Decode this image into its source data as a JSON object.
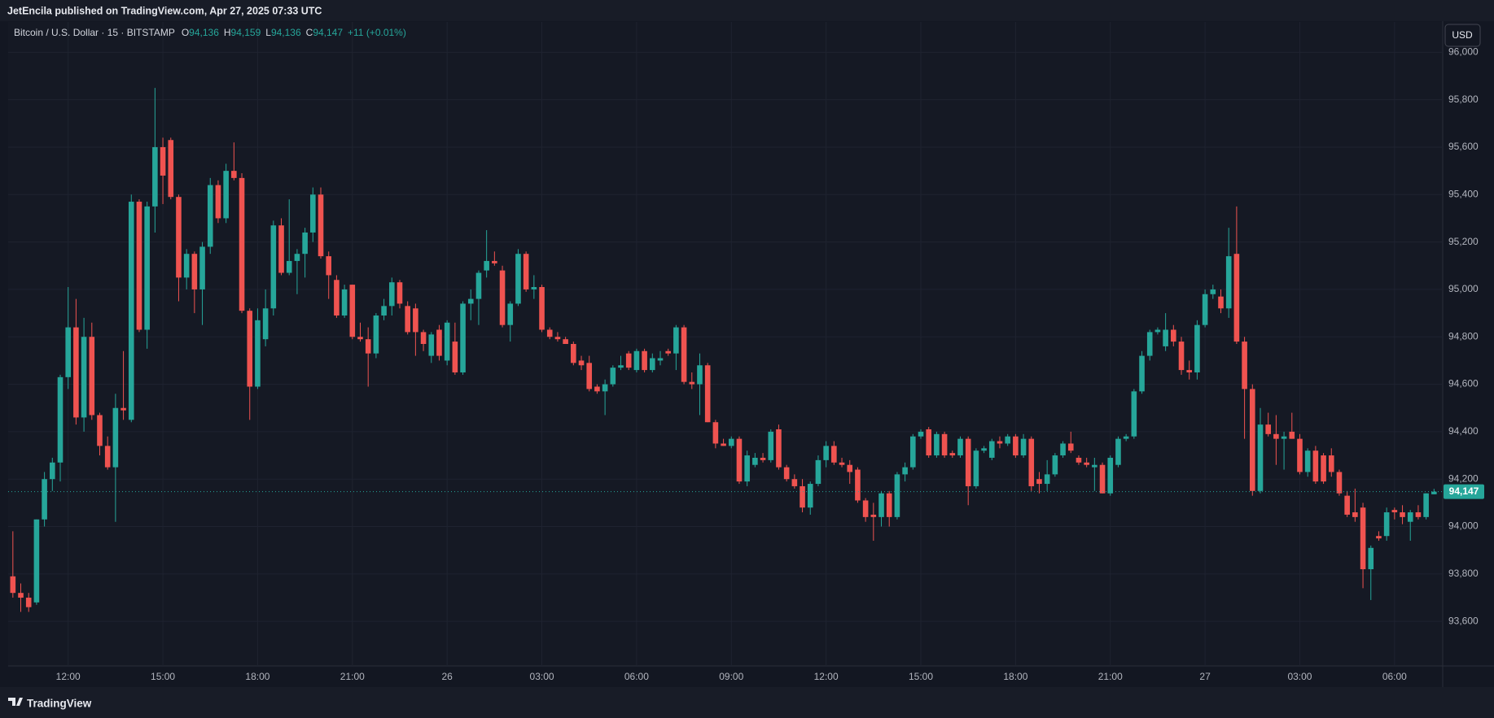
{
  "header": {
    "publisher_line": "JetEncila published on TradingView.com, Apr 27, 2025 07:33 UTC"
  },
  "footer": {
    "brand": "TradingView"
  },
  "chart_data": {
    "type": "candlestick",
    "symbol": "Bitcoin / U.S. Dollar · 15 · BITSTAMP",
    "ohlc_legend": [
      {
        "label": "O",
        "value": "94,136"
      },
      {
        "label": "H",
        "value": "94,159"
      },
      {
        "label": "L",
        "value": "94,136"
      },
      {
        "label": "C",
        "value": "94,147"
      }
    ],
    "change": "+11 (+0.01%)",
    "currency": "USD",
    "up_color": "#26a69a",
    "down_color": "#ef5350",
    "grid": true,
    "last_price": {
      "value": 94147,
      "label": "94,147"
    },
    "ylim": [
      93412,
      96128
    ],
    "yticks": [
      {
        "value": 93600,
        "label": "93,600"
      },
      {
        "value": 93800,
        "label": "93,800"
      },
      {
        "value": 94000,
        "label": "94,000"
      },
      {
        "value": 94200,
        "label": "94,200"
      },
      {
        "value": 94400,
        "label": "94,400"
      },
      {
        "value": 94600,
        "label": "94,600"
      },
      {
        "value": 94800,
        "label": "94,800"
      },
      {
        "value": 95000,
        "label": "95,000"
      },
      {
        "value": 95200,
        "label": "95,200"
      },
      {
        "value": 95400,
        "label": "95,400"
      },
      {
        "value": 95600,
        "label": "95,600"
      },
      {
        "value": 95800,
        "label": "95,800"
      },
      {
        "value": 96000,
        "label": "96,000"
      }
    ],
    "xlim": [
      -0.6,
      181.1
    ],
    "xticks": [
      {
        "value": 7,
        "label": "12:00"
      },
      {
        "value": 19,
        "label": "15:00"
      },
      {
        "value": 31,
        "label": "18:00"
      },
      {
        "value": 43,
        "label": "21:00"
      },
      {
        "value": 55,
        "label": "26"
      },
      {
        "value": 67,
        "label": "03:00"
      },
      {
        "value": 79,
        "label": "06:00"
      },
      {
        "value": 91,
        "label": "09:00"
      },
      {
        "value": 103,
        "label": "12:00"
      },
      {
        "value": 115,
        "label": "15:00"
      },
      {
        "value": 127,
        "label": "18:00"
      },
      {
        "value": 139,
        "label": "21:00"
      },
      {
        "value": 151,
        "label": "27"
      },
      {
        "value": 163,
        "label": "03:00"
      },
      {
        "value": 175,
        "label": "06:00"
      }
    ],
    "candles": [
      [
        93790,
        93980,
        93700,
        93720
      ],
      [
        93720,
        93760,
        93640,
        93700
      ],
      [
        93700,
        93720,
        93640,
        93660
      ],
      [
        93680,
        94030,
        93670,
        94030
      ],
      [
        94030,
        94230,
        94000,
        94200
      ],
      [
        94200,
        94290,
        94150,
        94270
      ],
      [
        94270,
        94640,
        94190,
        94630
      ],
      [
        94630,
        95010,
        94580,
        94840
      ],
      [
        94840,
        94960,
        94430,
        94460
      ],
      [
        94460,
        94880,
        94400,
        94800
      ],
      [
        94800,
        94860,
        94450,
        94470
      ],
      [
        94470,
        94480,
        94300,
        94340
      ],
      [
        94340,
        94380,
        94240,
        94250
      ],
      [
        94250,
        94560,
        94020,
        94500
      ],
      [
        94500,
        94740,
        94450,
        94490
      ],
      [
        94450,
        95400,
        94440,
        95370
      ],
      [
        95370,
        95380,
        94820,
        94830
      ],
      [
        94830,
        95370,
        94750,
        95350
      ],
      [
        95350,
        95850,
        95240,
        95600
      ],
      [
        95600,
        95640,
        95360,
        95480
      ],
      [
        95630,
        95640,
        95380,
        95390
      ],
      [
        95390,
        95400,
        94950,
        95050
      ],
      [
        95050,
        95170,
        95000,
        95150
      ],
      [
        95150,
        95160,
        94900,
        95000
      ],
      [
        95000,
        95200,
        94850,
        95180
      ],
      [
        95180,
        95470,
        95150,
        95440
      ],
      [
        95440,
        95460,
        95280,
        95300
      ],
      [
        95300,
        95530,
        95280,
        95500
      ],
      [
        95500,
        95620,
        95460,
        95470
      ],
      [
        95470,
        95490,
        94900,
        94910
      ],
      [
        94910,
        94920,
        94450,
        94590
      ],
      [
        94590,
        94920,
        94580,
        94870
      ],
      [
        94790,
        95000,
        94760,
        94920
      ],
      [
        94920,
        95290,
        94890,
        95270
      ],
      [
        95270,
        95300,
        95060,
        95070
      ],
      [
        95070,
        95380,
        95060,
        95120
      ],
      [
        95120,
        95170,
        94980,
        95150
      ],
      [
        95150,
        95260,
        95050,
        95240
      ],
      [
        95240,
        95430,
        95200,
        95400
      ],
      [
        95400,
        95430,
        95130,
        95140
      ],
      [
        95140,
        95160,
        94960,
        95060
      ],
      [
        95040,
        95060,
        94880,
        94890
      ],
      [
        94890,
        95020,
        94880,
        95000
      ],
      [
        95020,
        95020,
        94790,
        94800
      ],
      [
        94800,
        94860,
        94780,
        94790
      ],
      [
        94790,
        94840,
        94590,
        94730
      ],
      [
        94730,
        94900,
        94710,
        94890
      ],
      [
        94890,
        94960,
        94870,
        94930
      ],
      [
        94930,
        95050,
        94890,
        95030
      ],
      [
        95030,
        95040,
        94920,
        94940
      ],
      [
        94930,
        94950,
        94810,
        94820
      ],
      [
        94920,
        94940,
        94720,
        94820
      ],
      [
        94820,
        94830,
        94740,
        94770
      ],
      [
        94720,
        94820,
        94690,
        94810
      ],
      [
        94830,
        94850,
        94700,
        94720
      ],
      [
        94700,
        94870,
        94680,
        94860
      ],
      [
        94780,
        94860,
        94640,
        94650
      ],
      [
        94650,
        94950,
        94640,
        94940
      ],
      [
        94940,
        95000,
        94870,
        94960
      ],
      [
        94960,
        95080,
        94850,
        95070
      ],
      [
        95080,
        95250,
        95050,
        95120
      ],
      [
        95120,
        95160,
        95100,
        95110
      ],
      [
        95080,
        95100,
        94840,
        94850
      ],
      [
        94850,
        94950,
        94780,
        94940
      ],
      [
        94940,
        95170,
        94930,
        95150
      ],
      [
        95150,
        95160,
        94990,
        95000
      ],
      [
        95000,
        95060,
        94960,
        95010
      ],
      [
        95010,
        95020,
        94820,
        94830
      ],
      [
        94830,
        94840,
        94790,
        94800
      ],
      [
        94800,
        94820,
        94780,
        94790
      ],
      [
        94790,
        94800,
        94770,
        94770
      ],
      [
        94770,
        94780,
        94680,
        94690
      ],
      [
        94700,
        94720,
        94660,
        94680
      ],
      [
        94690,
        94720,
        94570,
        94580
      ],
      [
        94590,
        94600,
        94560,
        94570
      ],
      [
        94570,
        94620,
        94470,
        94600
      ],
      [
        94600,
        94680,
        94590,
        94670
      ],
      [
        94670,
        94720,
        94660,
        94680
      ],
      [
        94730,
        94740,
        94660,
        94670
      ],
      [
        94660,
        94750,
        94650,
        94740
      ],
      [
        94740,
        94750,
        94650,
        94660
      ],
      [
        94660,
        94730,
        94650,
        94710
      ],
      [
        94700,
        94740,
        94680,
        94710
      ],
      [
        94740,
        94750,
        94720,
        94730
      ],
      [
        94730,
        94850,
        94660,
        94840
      ],
      [
        94840,
        94850,
        94600,
        94610
      ],
      [
        94610,
        94650,
        94580,
        94600
      ],
      [
        94600,
        94730,
        94470,
        94680
      ],
      [
        94680,
        94690,
        94440,
        94440
      ],
      [
        94440,
        94450,
        94330,
        94350
      ],
      [
        94350,
        94370,
        94340,
        94340
      ],
      [
        94340,
        94380,
        94330,
        94370
      ],
      [
        94370,
        94380,
        94180,
        94190
      ],
      [
        94190,
        94320,
        94170,
        94300
      ],
      [
        94260,
        94310,
        94250,
        94290
      ],
      [
        94290,
        94310,
        94270,
        94280
      ],
      [
        94280,
        94410,
        94270,
        94400
      ],
      [
        94410,
        94430,
        94240,
        94250
      ],
      [
        94250,
        94260,
        94190,
        94200
      ],
      [
        94200,
        94220,
        94160,
        94170
      ],
      [
        94170,
        94200,
        94060,
        94080
      ],
      [
        94080,
        94190,
        94050,
        94180
      ],
      [
        94180,
        94300,
        94170,
        94280
      ],
      [
        94280,
        94360,
        94250,
        94340
      ],
      [
        94340,
        94360,
        94260,
        94270
      ],
      [
        94270,
        94290,
        94250,
        94260
      ],
      [
        94260,
        94280,
        94180,
        94230
      ],
      [
        94240,
        94250,
        94100,
        94110
      ],
      [
        94110,
        94120,
        94020,
        94040
      ],
      [
        94050,
        94100,
        93940,
        94040
      ],
      [
        94040,
        94150,
        94000,
        94140
      ],
      [
        94140,
        94150,
        94000,
        94040
      ],
      [
        94040,
        94230,
        94030,
        94220
      ],
      [
        94220,
        94270,
        94190,
        94250
      ],
      [
        94250,
        94390,
        94240,
        94380
      ],
      [
        94380,
        94410,
        94370,
        94400
      ],
      [
        94410,
        94420,
        94290,
        94300
      ],
      [
        94300,
        94400,
        94290,
        94390
      ],
      [
        94390,
        94400,
        94290,
        94300
      ],
      [
        94310,
        94320,
        94290,
        94300
      ],
      [
        94300,
        94380,
        94290,
        94370
      ],
      [
        94370,
        94380,
        94090,
        94170
      ],
      [
        94170,
        94330,
        94160,
        94320
      ],
      [
        94320,
        94340,
        94310,
        94330
      ],
      [
        94290,
        94370,
        94280,
        94360
      ],
      [
        94360,
        94380,
        94330,
        94350
      ],
      [
        94350,
        94390,
        94340,
        94380
      ],
      [
        94380,
        94390,
        94290,
        94300
      ],
      [
        94300,
        94390,
        94290,
        94370
      ],
      [
        94370,
        94380,
        94150,
        94170
      ],
      [
        94200,
        94230,
        94140,
        94180
      ],
      [
        94180,
        94280,
        94150,
        94220
      ],
      [
        94220,
        94310,
        94210,
        94300
      ],
      [
        94300,
        94360,
        94290,
        94350
      ],
      [
        94350,
        94400,
        94310,
        94320
      ],
      [
        94290,
        94300,
        94260,
        94270
      ],
      [
        94270,
        94290,
        94250,
        94260
      ],
      [
        94250,
        94290,
        94150,
        94260
      ],
      [
        94260,
        94270,
        94140,
        94140
      ],
      [
        94140,
        94300,
        94130,
        94290
      ],
      [
        94260,
        94380,
        94250,
        94370
      ],
      [
        94370,
        94390,
        94360,
        94380
      ],
      [
        94380,
        94580,
        94370,
        94570
      ],
      [
        94570,
        94740,
        94560,
        94720
      ],
      [
        94720,
        94830,
        94700,
        94820
      ],
      [
        94820,
        94840,
        94810,
        94830
      ],
      [
        94760,
        94900,
        94740,
        94830
      ],
      [
        94830,
        94850,
        94760,
        94780
      ],
      [
        94780,
        94800,
        94640,
        94660
      ],
      [
        94660,
        94700,
        94620,
        94650
      ],
      [
        94650,
        94870,
        94620,
        94850
      ],
      [
        94850,
        95000,
        94840,
        94980
      ],
      [
        94980,
        95020,
        94960,
        95000
      ],
      [
        94970,
        95000,
        94900,
        94920
      ],
      [
        94920,
        95260,
        94880,
        95140
      ],
      [
        95150,
        95350,
        94770,
        94780
      ],
      [
        94780,
        94800,
        94370,
        94580
      ],
      [
        94580,
        94600,
        94130,
        94150
      ],
      [
        94150,
        94500,
        94140,
        94430
      ],
      [
        94430,
        94480,
        94380,
        94390
      ],
      [
        94390,
        94470,
        94260,
        94370
      ],
      [
        94370,
        94400,
        94240,
        94380
      ],
      [
        94400,
        94480,
        94370,
        94370
      ],
      [
        94370,
        94390,
        94220,
        94230
      ],
      [
        94230,
        94330,
        94210,
        94320
      ],
      [
        94320,
        94340,
        94180,
        94190
      ],
      [
        94300,
        94310,
        94180,
        94190
      ],
      [
        94300,
        94330,
        94210,
        94230
      ],
      [
        94230,
        94240,
        94130,
        94140
      ],
      [
        94130,
        94150,
        94040,
        94050
      ],
      [
        94060,
        94160,
        94020,
        94040
      ],
      [
        94080,
        94100,
        93740,
        93820
      ],
      [
        93820,
        93920,
        93690,
        93910
      ],
      [
        93960,
        93980,
        93940,
        93950
      ],
      [
        93960,
        94080,
        93940,
        94060
      ],
      [
        94070,
        94080,
        94030,
        94060
      ],
      [
        94060,
        94090,
        94010,
        94040
      ],
      [
        94020,
        94070,
        93940,
        94060
      ],
      [
        94060,
        94090,
        94030,
        94040
      ],
      [
        94040,
        94140,
        94030,
        94140
      ],
      [
        94136,
        94159,
        94136,
        94147
      ]
    ]
  }
}
